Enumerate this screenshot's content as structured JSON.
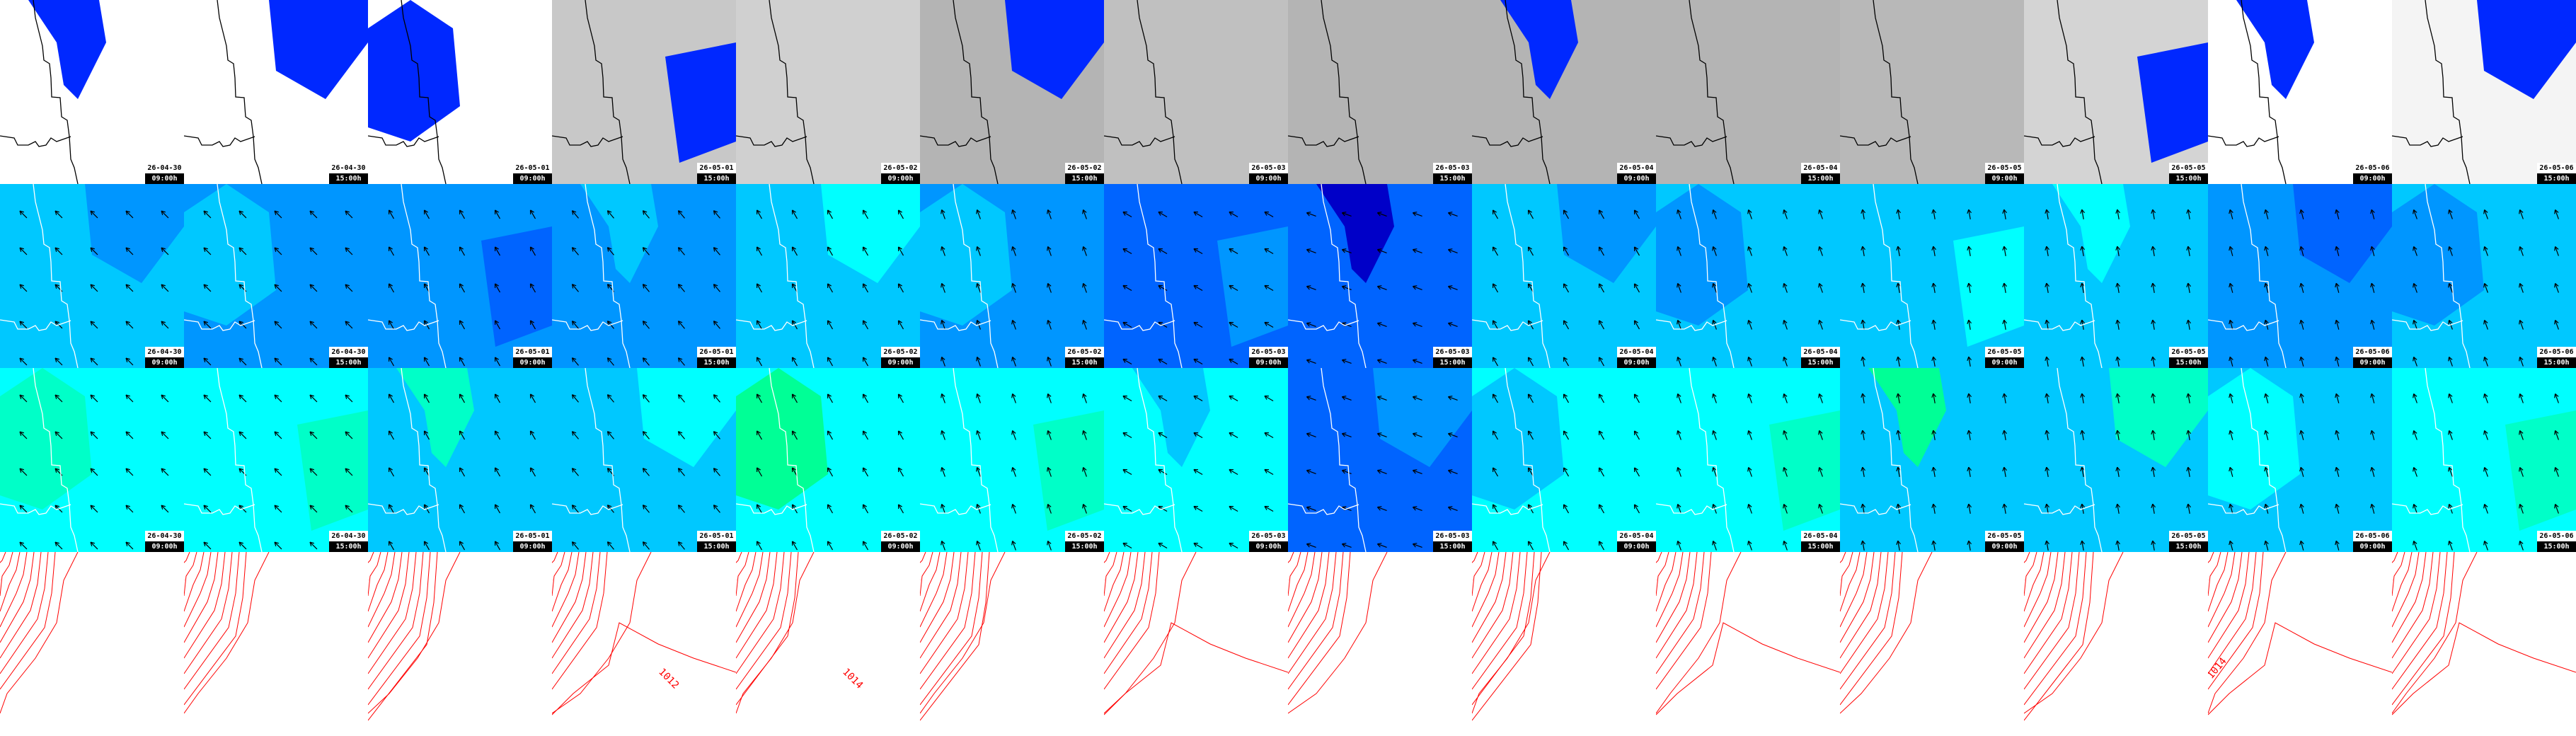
{
  "columns": [
    {
      "date": "26-04-30",
      "time": "09:00h"
    },
    {
      "date": "26-04-30",
      "time": "15:00h"
    },
    {
      "date": "26-05-01",
      "time": "09:00h"
    },
    {
      "date": "26-05-01",
      "time": "15:00h"
    },
    {
      "date": "26-05-02",
      "time": "09:00h"
    },
    {
      "date": "26-05-02",
      "time": "15:00h"
    },
    {
      "date": "26-05-03",
      "time": "09:00h"
    },
    {
      "date": "26-05-03",
      "time": "15:00h"
    },
    {
      "date": "26-05-04",
      "time": "09:00h"
    },
    {
      "date": "26-05-04",
      "time": "15:00h"
    },
    {
      "date": "26-05-05",
      "time": "09:00h"
    },
    {
      "date": "26-05-05",
      "time": "15:00h"
    },
    {
      "date": "26-05-06",
      "time": "09:00h"
    },
    {
      "date": "26-05-06",
      "time": "15:00h"
    }
  ],
  "rows": [
    {
      "name": "precipitation",
      "coast_color": "#000000",
      "base": [
        "#ffffff",
        "#ffffff",
        "#ffffff",
        "#c8c8c8",
        "#d0d0d0",
        "#b4b4b4",
        "#c0c0c0",
        "#b4b4b4",
        "#b4b4b4",
        "#b4b4b4",
        "#b8b8b8",
        "#d4d4d4",
        "#ffffff",
        "#f4f4f4"
      ],
      "overlay": [
        "#0028ff",
        "#0028ff",
        "#0028ff",
        "#0028ff",
        "none",
        "#0028ff",
        "none",
        "none",
        "#0028ff",
        "none",
        "none",
        "#0028ff",
        "#0028ff",
        "#0028ff"
      ]
    },
    {
      "name": "wind",
      "coast_color": "#ffffff",
      "base": [
        "#00c8ff",
        "#0096ff",
        "#0096ff",
        "#0096ff",
        "#00c8ff",
        "#0096ff",
        "#0064ff",
        "#0064ff",
        "#00c8ff",
        "#00c8ff",
        "#00c8ff",
        "#00c8ff",
        "#0096ff",
        "#00c8ff"
      ],
      "overlay": [
        "#0096ff",
        "#00c8ff",
        "#0064ff",
        "#00c8ff",
        "#00ffff",
        "#00c8ff",
        "#0096ff",
        "#0000c8",
        "#0096ff",
        "#0096ff",
        "#00ffff",
        "#00ffff",
        "#0064ff",
        "#0096ff"
      ],
      "wind_dir_deg": [
        315,
        315,
        330,
        320,
        330,
        340,
        300,
        290,
        330,
        340,
        350,
        350,
        345,
        340
      ]
    },
    {
      "name": "gusts",
      "coast_color": "#ffffff",
      "base": [
        "#00ffff",
        "#00ffff",
        "#00c8ff",
        "#00c8ff",
        "#00ffff",
        "#00ffff",
        "#00ffff",
        "#0064ff",
        "#00ffff",
        "#00ffff",
        "#00c8ff",
        "#00c8ff",
        "#00c8ff",
        "#00ffff"
      ],
      "overlay": [
        "#00ffc8",
        "#00ffc8",
        "#00ffc8",
        "#00ffff",
        "#00ff96",
        "#00ffc8",
        "#00c8ff",
        "#0096ff",
        "#00c8ff",
        "#00ffc8",
        "#00ff96",
        "#00ffc8",
        "#00ffff",
        "#00ffc8"
      ],
      "wind_dir_deg": [
        315,
        315,
        330,
        320,
        330,
        340,
        300,
        290,
        330,
        340,
        350,
        350,
        345,
        340
      ]
    },
    {
      "name": "isobars",
      "line_color": "#ff0000",
      "labels": [
        "",
        "",
        "",
        "1012",
        "1014",
        "",
        "",
        "",
        "",
        "",
        "",
        "",
        "1014",
        ""
      ]
    }
  ]
}
